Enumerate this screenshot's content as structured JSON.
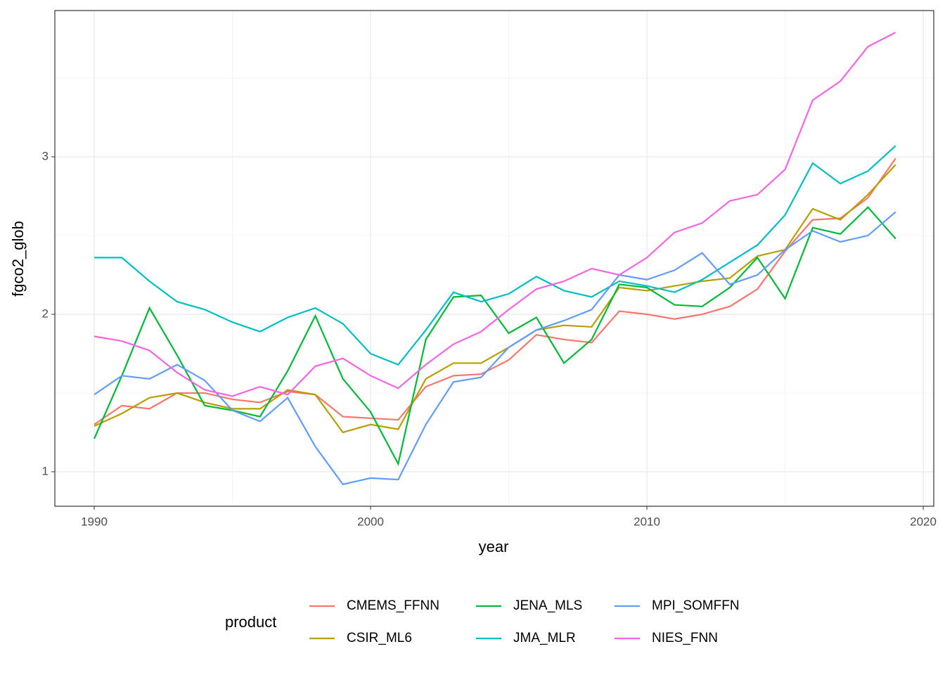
{
  "chart_data": {
    "type": "line",
    "x_label": "year",
    "y_label": "fgco2_glob",
    "legend_title": "product",
    "x": [
      1990,
      1991,
      1992,
      1993,
      1994,
      1995,
      1996,
      1997,
      1998,
      1999,
      2000,
      2001,
      2002,
      2003,
      2004,
      2005,
      2006,
      2007,
      2008,
      2009,
      2010,
      2011,
      2012,
      2013,
      2014,
      2015,
      2016,
      2017,
      2018,
      2019
    ],
    "series": [
      {
        "name": "CMEMS_FFNN",
        "color": "#F8766D",
        "values": [
          1.3,
          1.42,
          1.4,
          1.5,
          1.5,
          1.46,
          1.44,
          1.51,
          1.49,
          1.35,
          1.34,
          1.33,
          1.54,
          1.61,
          1.62,
          1.71,
          1.87,
          1.84,
          1.82,
          2.02,
          2.0,
          1.97,
          2.0,
          2.05,
          2.16,
          2.4,
          2.6,
          2.61,
          2.74,
          2.99
        ]
      },
      {
        "name": "CSIR_ML6",
        "color": "#B79F00",
        "values": [
          1.29,
          1.37,
          1.47,
          1.5,
          1.44,
          1.4,
          1.4,
          1.52,
          1.49,
          1.25,
          1.3,
          1.27,
          1.59,
          1.69,
          1.69,
          1.79,
          1.9,
          1.93,
          1.92,
          2.17,
          2.15,
          2.18,
          2.21,
          2.23,
          2.37,
          2.41,
          2.67,
          2.6,
          2.76,
          2.95
        ]
      },
      {
        "name": "JENA_MLS",
        "color": "#00BA38",
        "values": [
          1.21,
          1.61,
          2.04,
          1.74,
          1.42,
          1.39,
          1.35,
          1.64,
          1.99,
          1.59,
          1.38,
          1.05,
          1.84,
          2.11,
          2.12,
          1.88,
          1.98,
          1.69,
          1.84,
          2.19,
          2.17,
          2.06,
          2.05,
          2.17,
          2.36,
          2.1,
          2.55,
          2.51,
          2.68,
          2.48
        ]
      },
      {
        "name": "JMA_MLR",
        "color": "#00BFC4",
        "values": [
          2.36,
          2.36,
          2.21,
          2.08,
          2.03,
          1.95,
          1.89,
          1.98,
          2.04,
          1.94,
          1.75,
          1.68,
          1.9,
          2.14,
          2.08,
          2.13,
          2.24,
          2.15,
          2.11,
          2.21,
          2.18,
          2.14,
          2.22,
          2.33,
          2.44,
          2.63,
          2.96,
          2.83,
          2.91,
          3.07
        ]
      },
      {
        "name": "MPI_SOMFFN",
        "color": "#619CFF",
        "values": [
          1.49,
          1.61,
          1.59,
          1.68,
          1.58,
          1.39,
          1.32,
          1.47,
          1.16,
          0.92,
          0.96,
          0.95,
          1.3,
          1.57,
          1.6,
          1.79,
          1.9,
          1.96,
          2.03,
          2.25,
          2.22,
          2.28,
          2.39,
          2.19,
          2.25,
          2.41,
          2.53,
          2.46,
          2.5,
          2.65
        ]
      },
      {
        "name": "NIES_FNN",
        "color": "#F564E3",
        "values": [
          1.86,
          1.83,
          1.77,
          1.63,
          1.52,
          1.48,
          1.54,
          1.49,
          1.67,
          1.72,
          1.61,
          1.53,
          1.68,
          1.81,
          1.89,
          2.03,
          2.16,
          2.21,
          2.29,
          2.25,
          2.36,
          2.52,
          2.58,
          2.72,
          2.76,
          2.92,
          3.36,
          3.48,
          3.7,
          3.79
        ]
      }
    ],
    "xlim": [
      1988.575,
      2020.38
    ],
    "xticks": [
      1990,
      2000,
      2010,
      2020
    ],
    "x_minor": [
      1995,
      2005,
      2015
    ],
    "ylim": [
      0.781,
      3.929
    ],
    "yticks": [
      1,
      2,
      3
    ],
    "y_minor": [
      1.5,
      2.5,
      3.5
    ],
    "grid": true,
    "legend_position": "bottom"
  }
}
